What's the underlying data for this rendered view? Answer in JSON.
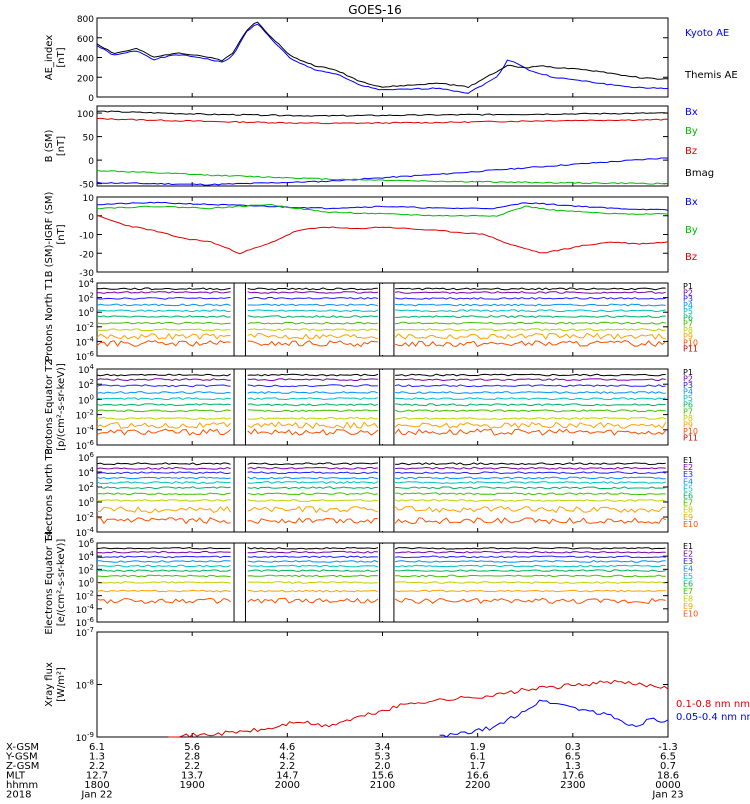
{
  "title": "GOES-16",
  "colors": {
    "black": "#000000",
    "blue": "#0000ff",
    "red": "#dd0000",
    "green": "#00bb00",
    "spectrum": [
      "#000000",
      "#7a00a8",
      "#2020ff",
      "#0090ff",
      "#00c0c0",
      "#00b060",
      "#40c000",
      "#c0d000",
      "#ffa000",
      "#ff5000",
      "#d00000"
    ]
  },
  "chart_data": [
    {
      "type": "line",
      "ylabel": "AE_index [nT]",
      "ylim": [
        0,
        800
      ],
      "yticks": [
        "0",
        "200",
        "400",
        "600",
        "800"
      ],
      "series": [
        {
          "name": "Kyoto AE",
          "color": "blue",
          "x": [
            0,
            0.03,
            0.07,
            0.1,
            0.14,
            0.18,
            0.22,
            0.24,
            0.26,
            0.28,
            0.3,
            0.34,
            0.38,
            0.42,
            0.46,
            0.5,
            0.55,
            0.6,
            0.65,
            0.7,
            0.72,
            0.74,
            0.76,
            0.78,
            0.8,
            0.84,
            0.88,
            0.92,
            0.96,
            1
          ],
          "values": [
            520,
            420,
            470,
            380,
            430,
            400,
            350,
            430,
            650,
            750,
            620,
            380,
            280,
            230,
            120,
            70,
            80,
            90,
            40,
            200,
            380,
            330,
            260,
            230,
            200,
            170,
            140,
            110,
            90,
            90
          ]
        },
        {
          "name": "Themis AE",
          "color": "black",
          "x": [
            0,
            0.03,
            0.07,
            0.1,
            0.14,
            0.18,
            0.22,
            0.24,
            0.26,
            0.28,
            0.3,
            0.34,
            0.38,
            0.42,
            0.46,
            0.5,
            0.55,
            0.6,
            0.65,
            0.7,
            0.72,
            0.74,
            0.76,
            0.78,
            0.8,
            0.84,
            0.88,
            0.92,
            0.96,
            1
          ],
          "values": [
            540,
            440,
            490,
            400,
            450,
            420,
            370,
            460,
            660,
            770,
            640,
            410,
            320,
            270,
            160,
            100,
            120,
            140,
            100,
            260,
            320,
            300,
            300,
            320,
            300,
            280,
            260,
            220,
            190,
            180
          ]
        }
      ]
    },
    {
      "type": "line",
      "ylabel": "B (SM) [nT]",
      "ylim": [
        -55,
        115
      ],
      "yticks": [
        "-50",
        "0",
        "50",
        "100"
      ],
      "series": [
        {
          "name": "Bx",
          "color": "blue",
          "x": [
            0,
            0.2,
            0.4,
            0.6,
            0.8,
            1
          ],
          "values": [
            -48,
            -52,
            -45,
            -30,
            -12,
            5
          ]
        },
        {
          "name": "By",
          "color": "green",
          "x": [
            0,
            0.2,
            0.4,
            0.6,
            0.8,
            1
          ],
          "values": [
            -22,
            -32,
            -40,
            -45,
            -48,
            -50
          ]
        },
        {
          "name": "Bz",
          "color": "red",
          "x": [
            0,
            0.2,
            0.4,
            0.6,
            0.8,
            1
          ],
          "values": [
            88,
            82,
            78,
            80,
            84,
            86
          ]
        },
        {
          "name": "Bmag",
          "color": "black",
          "x": [
            0,
            0.2,
            0.4,
            0.6,
            0.8,
            1
          ],
          "values": [
            104,
            97,
            94,
            96,
            98,
            100
          ]
        }
      ]
    },
    {
      "type": "line",
      "ylabel": "B (SM)-IGRF (SM) [nT]",
      "ylim": [
        -30,
        10
      ],
      "yticks": [
        "-30",
        "-20",
        "-10",
        "0",
        "10"
      ],
      "series": [
        {
          "name": "Bx",
          "color": "blue",
          "x": [
            0,
            0.1,
            0.2,
            0.3,
            0.4,
            0.5,
            0.6,
            0.7,
            0.75,
            0.8,
            0.9,
            1
          ],
          "values": [
            6,
            7,
            6,
            5,
            4,
            5,
            4,
            4,
            7,
            6,
            4,
            3
          ]
        },
        {
          "name": "By",
          "color": "green",
          "x": [
            0,
            0.1,
            0.2,
            0.3,
            0.4,
            0.5,
            0.6,
            0.7,
            0.75,
            0.8,
            0.9,
            1
          ],
          "values": [
            4,
            5,
            4,
            6,
            2,
            1,
            0,
            0,
            5,
            3,
            1,
            1
          ]
        },
        {
          "name": "Bz",
          "color": "red",
          "x": [
            0,
            0.05,
            0.1,
            0.15,
            0.2,
            0.25,
            0.3,
            0.35,
            0.4,
            0.45,
            0.5,
            0.6,
            0.68,
            0.72,
            0.78,
            0.85,
            0.9,
            0.95,
            1
          ],
          "values": [
            0,
            -5,
            -8,
            -12,
            -14,
            -20,
            -15,
            -8,
            -6,
            -7,
            -6,
            -8,
            -10,
            -15,
            -20,
            -16,
            -14,
            -15,
            -14
          ]
        }
      ]
    },
    {
      "type": "line",
      "ylabel": "Protons North T1",
      "log": true,
      "ylim": [
        -6,
        4
      ],
      "yticks": [
        "10^4",
        "10^2",
        "10^0",
        "10^-2",
        "10^-4",
        "10^-6"
      ],
      "gaps": [
        [
          0.24,
          0.26
        ],
        [
          0.495,
          0.52
        ]
      ],
      "channels": [
        "P1",
        "P2",
        "P3",
        "P4",
        "P5",
        "P6",
        "P7",
        "P8",
        "P9",
        "P10",
        "P11"
      ],
      "levels": [
        3.2,
        2.7,
        1.9,
        1.0,
        0.2,
        -0.6,
        -1.5,
        -2.4,
        -3.3,
        -4.3,
        null
      ]
    },
    {
      "type": "line",
      "ylabel": "Protons Equator T2 [p/(cm²-s-sr-keV)]",
      "log": true,
      "ylim": [
        -6,
        4
      ],
      "yticks": [
        "10^4",
        "10^2",
        "10^0",
        "10^-2",
        "10^-4",
        "10^-6"
      ],
      "gaps": [
        [
          0.24,
          0.26
        ],
        [
          0.495,
          0.52
        ]
      ],
      "channels": [
        "P1",
        "P2",
        "P3",
        "P4",
        "P5",
        "P6",
        "P7",
        "P8",
        "P9",
        "P10",
        "P11"
      ],
      "levels": [
        3.2,
        2.6,
        1.8,
        0.9,
        0.1,
        -0.7,
        -1.5,
        -2.5,
        -3.4,
        -4.3,
        null
      ]
    },
    {
      "type": "line",
      "ylabel": "Electrons North T3",
      "log": true,
      "ylim": [
        -4,
        6
      ],
      "yticks": [
        "10^6",
        "10^4",
        "10^2",
        "10^0",
        "10^-2",
        "10^-4"
      ],
      "gaps": [
        [
          0.24,
          0.26
        ],
        [
          0.495,
          0.52
        ]
      ],
      "channels": [
        "E1",
        "E2",
        "E3",
        "E4",
        "E5",
        "E6",
        "E7",
        "E8",
        "E9",
        "E10"
      ],
      "levels": [
        5.1,
        4.5,
        3.9,
        3.2,
        2.6,
        1.9,
        1.1,
        0.2,
        -1.0,
        -2.5
      ]
    },
    {
      "type": "line",
      "ylabel": "Electrons Equator T4 [e/(cm²-s-sr-keV)]",
      "log": true,
      "ylim": [
        -6,
        6
      ],
      "yticks": [
        "10^6",
        "10^4",
        "10^2",
        "10^0",
        "10^-2",
        "10^-4",
        "10^-6"
      ],
      "gaps": [
        [
          0.24,
          0.26
        ],
        [
          0.495,
          0.52
        ]
      ],
      "channels": [
        "E1",
        "E2",
        "E3",
        "E4",
        "E5",
        "E6",
        "E7",
        "E8",
        "E9",
        "E10"
      ],
      "levels": [
        5.2,
        4.6,
        3.9,
        3.2,
        2.5,
        1.8,
        1.0,
        0.0,
        -1.3,
        -2.8
      ]
    },
    {
      "type": "line",
      "ylabel": "Xray flux [W/m²]",
      "log": true,
      "ylim": [
        -9,
        -7
      ],
      "yticks": [
        "10^-7",
        "10^-8",
        "10^-9"
      ],
      "series": [
        {
          "name": "0.1-0.8 nm",
          "color": "red",
          "x": [
            0.12,
            0.2,
            0.3,
            0.35,
            0.4,
            0.45,
            0.5,
            0.55,
            0.6,
            0.65,
            0.7,
            0.75,
            0.8,
            0.85,
            0.9,
            0.95,
            1
          ],
          "values": [
            -9,
            -8.95,
            -8.85,
            -8.7,
            -8.8,
            -8.65,
            -8.5,
            -8.35,
            -8.3,
            -8.25,
            -8.2,
            -8.1,
            -8.05,
            -8,
            -7.95,
            -8,
            -8.05
          ]
        },
        {
          "name": "0.05-0.4 nm",
          "color": "blue",
          "x": [
            0.6,
            0.63,
            0.66,
            0.7,
            0.74,
            0.78,
            0.82,
            0.86,
            0.9,
            0.94,
            0.97,
            1
          ],
          "values": [
            -9,
            -8.95,
            -8.9,
            -8.8,
            -8.55,
            -8.3,
            -8.4,
            -8.5,
            -8.6,
            -8.8,
            -8.65,
            -8.7
          ]
        }
      ]
    }
  ],
  "xaxis": {
    "rows": [
      "X-GSM",
      "Y-GSM",
      "Z-GSM",
      "MLT",
      "hhmm",
      "2018"
    ],
    "ticks": [
      {
        "vals": [
          "6.1",
          "1.3",
          "2.2",
          "12.7",
          "1800",
          "Jan 22"
        ]
      },
      {
        "vals": [
          "5.6",
          "2.8",
          "2.2",
          "13.7",
          "1900",
          ""
        ]
      },
      {
        "vals": [
          "4.6",
          "4.2",
          "2.2",
          "14.7",
          "2000",
          ""
        ]
      },
      {
        "vals": [
          "3.4",
          "5.3",
          "2.0",
          "15.6",
          "2100",
          ""
        ]
      },
      {
        "vals": [
          "1.9",
          "6.1",
          "1.7",
          "16.6",
          "2200",
          ""
        ]
      },
      {
        "vals": [
          "0.3",
          "6.5",
          "1.3",
          "17.6",
          "2300",
          ""
        ]
      },
      {
        "vals": [
          "-1.3",
          "6.5",
          "0.7",
          "18.6",
          "0000",
          "Jan 23"
        ]
      }
    ]
  }
}
